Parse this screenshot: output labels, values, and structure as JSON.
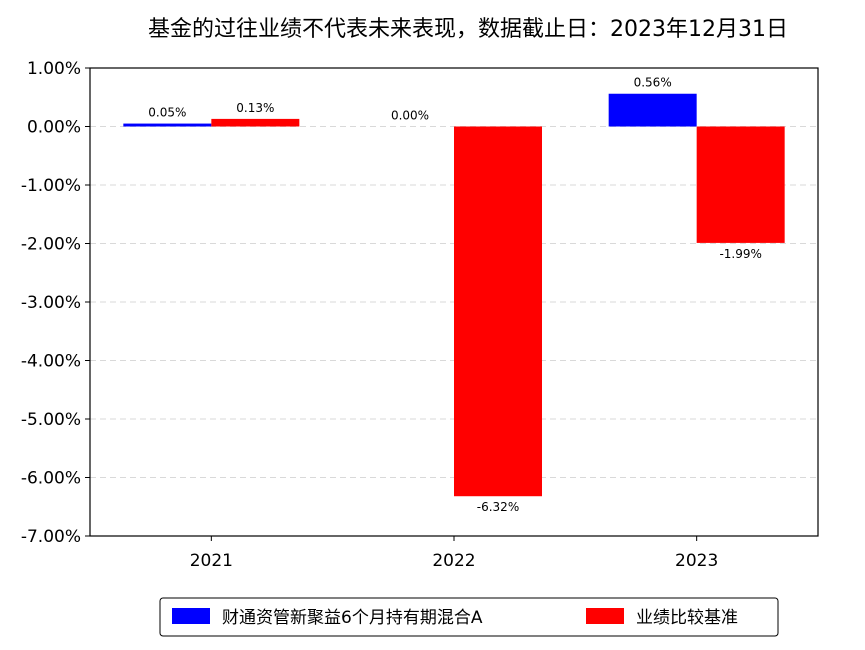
{
  "chart_data": {
    "type": "bar",
    "title": "基金的过往业绩不代表未来表现，数据截止日：2023年12月31日",
    "categories": [
      "2021",
      "2022",
      "2023"
    ],
    "series": [
      {
        "name": "财通资管新聚益6个月持有期混合A",
        "color": "#0000ff",
        "values": [
          0.05,
          0.0,
          0.56
        ],
        "labels": [
          "0.05%",
          "0.00%",
          "0.56%"
        ]
      },
      {
        "name": "业绩比较基准",
        "color": "#ff0000",
        "values": [
          0.13,
          -6.32,
          -1.99
        ],
        "labels": [
          "0.13%",
          "-6.32%",
          "-1.99%"
        ]
      }
    ],
    "ylim": [
      -7.0,
      1.0
    ],
    "yticks": [
      1.0,
      0.0,
      -1.0,
      -2.0,
      -3.0,
      -4.0,
      -5.0,
      -6.0,
      -7.0
    ],
    "ytick_labels": [
      "1.00%",
      "0.00%",
      "-1.00%",
      "-2.00%",
      "-3.00%",
      "-4.00%",
      "-5.00%",
      "-6.00%",
      "-7.00%"
    ],
    "grid": true,
    "legend_position": "bottom"
  }
}
